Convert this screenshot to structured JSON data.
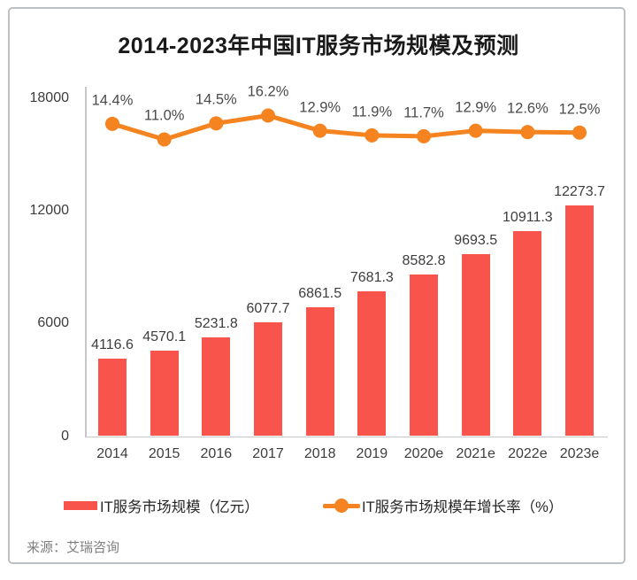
{
  "title": "2014-2023年中国IT服务市场规模及预测",
  "source": "来源：艾瑞咨询",
  "colors": {
    "bar": "#f9544b",
    "line": "#f5831f",
    "axis": "#c7c7c7"
  },
  "legend": {
    "items": [
      {
        "label": "IT服务市场规模（亿元）",
        "marker": "bar-swatch",
        "color": "#f9544b"
      },
      {
        "label": "IT服务市场规模年增长率（%）",
        "marker": "line-dot-swatch",
        "color": "#f5831f"
      }
    ]
  },
  "chart_data": {
    "type": "bar+line combo",
    "title": "2014-2023年中国IT服务市场规模及预测",
    "categories": [
      "2014",
      "2015",
      "2016",
      "2017",
      "2018",
      "2019",
      "2020e",
      "2021e",
      "2022e",
      "2023e"
    ],
    "series": [
      {
        "name": "IT服务市场规模（亿元）",
        "type": "bar",
        "color": "#f9544b",
        "values": [
          4116.6,
          4570.1,
          5231.8,
          6077.7,
          6861.5,
          7681.3,
          8582.8,
          9693.5,
          10911.3,
          12273.7
        ]
      },
      {
        "name": "IT服务市场规模年增长率（%）",
        "type": "line",
        "color": "#f5831f",
        "unit": "%",
        "values": [
          14.4,
          11.0,
          14.5,
          16.2,
          12.9,
          11.9,
          11.7,
          12.9,
          12.6,
          12.5
        ]
      }
    ],
    "y_axis": {
      "ticks": [
        0,
        6000,
        12000,
        18000
      ],
      "range": [
        0,
        18000
      ],
      "label": ""
    },
    "x_axis": {
      "label": ""
    },
    "grid": false,
    "legend_position": "bottom",
    "data_labels": true
  }
}
